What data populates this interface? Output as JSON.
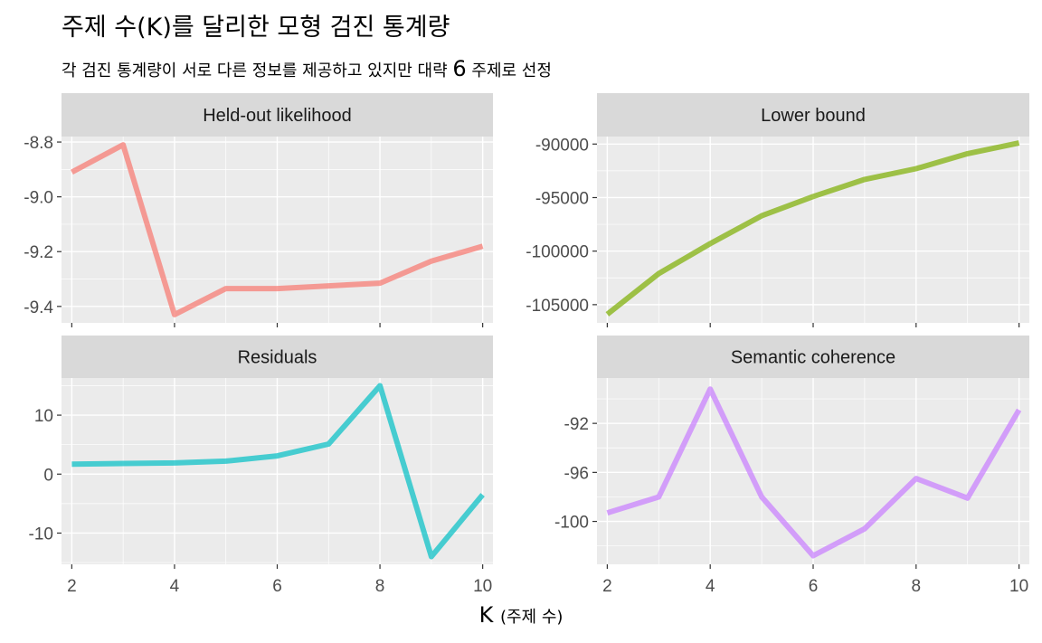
{
  "title": "주제 수(K)를 달리한 모형 검진 통계량",
  "subtitle_pre": "각 검진 통계량이 서로 다른 정보를 제공하고 있지만 대략 ",
  "subtitle_num": "6",
  "subtitle_post": " 주제로 선정",
  "xaxis_label_main": "K",
  "xaxis_label_unit": "(주제 수)",
  "chart_data": [
    {
      "type": "line",
      "title": "Held-out likelihood",
      "color": "#F8766D",
      "x": [
        2,
        3,
        4,
        5,
        6,
        7,
        8,
        9,
        10
      ],
      "y": [
        -8.91,
        -8.81,
        -9.43,
        -9.335,
        -9.335,
        -9.325,
        -9.315,
        -9.235,
        -9.18
      ],
      "xlim": [
        1.8,
        10.2
      ],
      "ylim": [
        -9.46,
        -8.78
      ],
      "yticks": [
        -8.8,
        -9.0,
        -9.2,
        -9.4
      ],
      "ytick_labels": [
        "-8.8",
        "-9.0",
        "-9.2",
        "-9.4"
      ],
      "xticks": [
        2,
        4,
        6,
        8,
        10
      ]
    },
    {
      "type": "line",
      "title": "Lower bound",
      "color": "#7CAE00",
      "x": [
        2,
        3,
        4,
        5,
        6,
        7,
        8,
        9,
        10
      ],
      "y": [
        -105900,
        -102100,
        -99300,
        -96700,
        -94900,
        -93300,
        -92300,
        -90900,
        -89900
      ],
      "xlim": [
        1.8,
        10.2
      ],
      "ylim": [
        -106700,
        -89300
      ],
      "yticks": [
        -90000,
        -95000,
        -100000,
        -105000
      ],
      "ytick_labels": [
        "-90000",
        "-95000",
        "-100000",
        "-105000"
      ],
      "xticks": [
        2,
        4,
        6,
        8,
        10
      ]
    },
    {
      "type": "line",
      "title": "Residuals",
      "color": "#00BFC4",
      "x": [
        2,
        3,
        4,
        5,
        6,
        7,
        8,
        9,
        10
      ],
      "y": [
        1.7,
        1.8,
        1.9,
        2.2,
        3.1,
        5.1,
        15.0,
        -14.0,
        -3.5
      ],
      "xlim": [
        1.8,
        10.2
      ],
      "ylim": [
        -15.3,
        16.3
      ],
      "yticks": [
        10,
        0,
        -10
      ],
      "ytick_labels": [
        "10",
        "0",
        "-10"
      ],
      "xticks": [
        2,
        4,
        6,
        8,
        10
      ],
      "xtick_labels": [
        "2",
        "4",
        "6",
        "8",
        "10"
      ]
    },
    {
      "type": "line",
      "title": "Semantic coherence",
      "color": "#C77CFF",
      "x": [
        2,
        3,
        4,
        5,
        6,
        7,
        8,
        9,
        10
      ],
      "y": [
        -99.3,
        -98.0,
        -89.2,
        -98.0,
        -102.8,
        -100.6,
        -96.5,
        -98.1,
        -90.9
      ],
      "xlim": [
        1.8,
        10.2
      ],
      "ylim": [
        -103.5,
        -88.3
      ],
      "yticks": [
        -92,
        -96,
        -100
      ],
      "ytick_labels": [
        "-92",
        "-96",
        "-100"
      ],
      "xticks": [
        2,
        4,
        6,
        8,
        10
      ],
      "xtick_labels": [
        "2",
        "4",
        "6",
        "8",
        "10"
      ]
    }
  ]
}
